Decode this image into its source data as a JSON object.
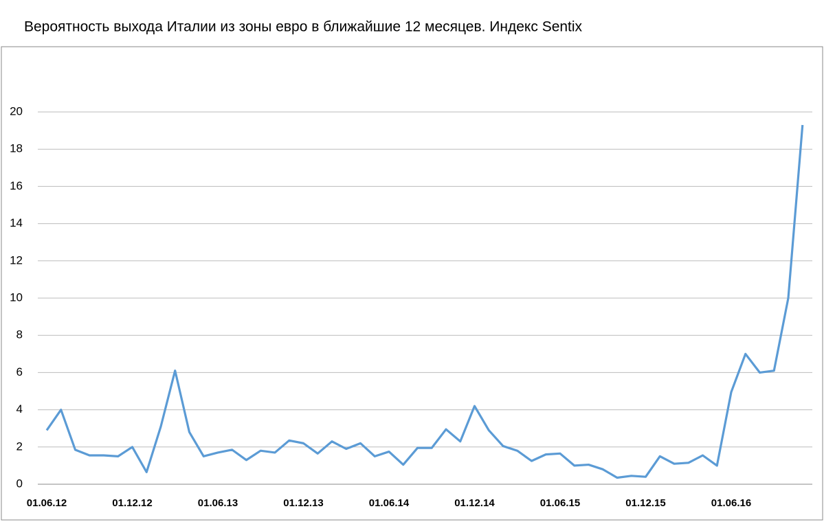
{
  "chart_data": {
    "type": "line",
    "title": "Вероятность выхода Италии из зоны евро в ближайшие 12 месяцев. Индекс Sentix",
    "categories": [
      "01.06.12",
      null,
      null,
      null,
      null,
      null,
      "01.12.12",
      null,
      null,
      null,
      null,
      null,
      "01.06.13",
      null,
      null,
      null,
      null,
      null,
      "01.12.13",
      null,
      null,
      null,
      null,
      null,
      "01.06.14",
      null,
      null,
      null,
      null,
      null,
      "01.12.14",
      null,
      null,
      null,
      null,
      null,
      "01.06.15",
      null,
      null,
      null,
      null,
      null,
      "01.12.15",
      null,
      null,
      null,
      null,
      null,
      "01.06.16",
      null,
      null,
      null,
      null,
      null
    ],
    "series": [
      {
        "color": "#5b9bd5",
        "values": [
          2.9,
          4.0,
          1.85,
          1.55,
          1.55,
          1.5,
          2.0,
          0.65,
          3.1,
          6.1,
          2.8,
          1.5,
          1.7,
          1.85,
          1.3,
          1.8,
          1.7,
          2.35,
          2.2,
          1.65,
          2.3,
          1.9,
          2.2,
          1.5,
          1.75,
          1.05,
          1.95,
          1.95,
          2.95,
          2.3,
          4.2,
          2.9,
          2.05,
          1.8,
          1.25,
          1.6,
          1.65,
          1.0,
          1.05,
          0.8,
          0.35,
          0.45,
          0.4,
          1.5,
          1.1,
          1.15,
          1.55,
          1.0,
          4.95,
          7.0,
          6.0,
          6.1,
          10.0,
          19.3
        ]
      }
    ],
    "ylim": [
      0,
      20
    ],
    "yticks": [
      0,
      2,
      4,
      6,
      8,
      10,
      12,
      14,
      16,
      18,
      20
    ],
    "grid": true
  }
}
